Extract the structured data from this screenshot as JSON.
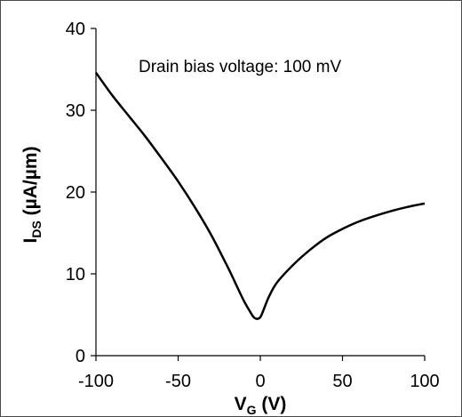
{
  "chart_data": {
    "type": "line",
    "title": "",
    "annotation": "Drain bias voltage: 100 mV",
    "xlabel": {
      "main": "V",
      "sub": "G",
      "unit": " (V)"
    },
    "ylabel": {
      "main": "I",
      "sub": "DS",
      "unit": " (µA/µm)"
    },
    "xlim": [
      -100,
      100
    ],
    "ylim": [
      0,
      40
    ],
    "x_ticks": [
      -100,
      -50,
      0,
      50,
      100
    ],
    "y_ticks": [
      0,
      10,
      20,
      30,
      40
    ],
    "grid": false,
    "series": [
      {
        "color": "#000000",
        "x": [
          -100,
          -90,
          -80,
          -70,
          -60,
          -50,
          -40,
          -30,
          -20,
          -15,
          -10,
          -6,
          -4,
          -2,
          0,
          2,
          5,
          10,
          20,
          30,
          40,
          50,
          60,
          70,
          80,
          90,
          100
        ],
        "y": [
          34.6,
          31.8,
          29.3,
          26.8,
          24.1,
          21.3,
          18.2,
          14.8,
          10.9,
          8.8,
          6.7,
          5.3,
          4.7,
          4.5,
          4.7,
          5.6,
          7.1,
          8.9,
          11.1,
          12.9,
          14.4,
          15.5,
          16.4,
          17.1,
          17.7,
          18.2,
          18.6
        ]
      }
    ]
  }
}
